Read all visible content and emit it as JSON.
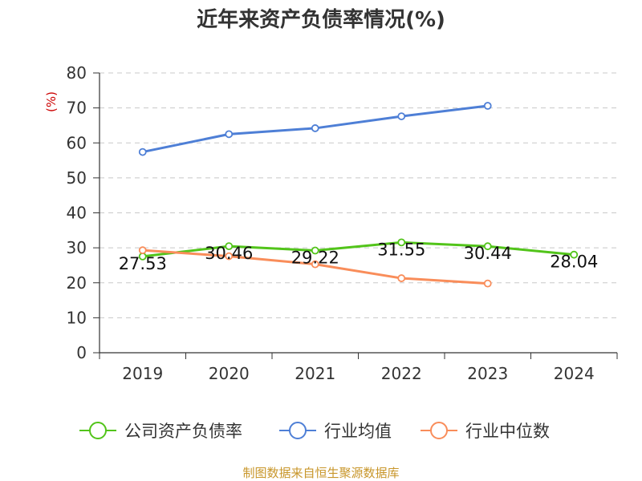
{
  "chart_data": {
    "type": "line",
    "title": "近年来资产负债率情况(%)",
    "ylabel": "(%)",
    "categories": [
      "2019",
      "2020",
      "2021",
      "2022",
      "2023",
      "2024"
    ],
    "ylim": [
      0,
      80
    ],
    "yticks": [
      0,
      10,
      20,
      30,
      40,
      50,
      60,
      70,
      80
    ],
    "grid": true,
    "legend_position": "bottom",
    "series": [
      {
        "name": "公司资产负债率",
        "color": "#52c41a",
        "values": [
          27.53,
          30.46,
          29.22,
          31.55,
          30.44,
          28.04
        ],
        "labels": [
          "27.53",
          "30.46",
          "29.22",
          "31.55",
          "30.44",
          "28.04"
        ]
      },
      {
        "name": "行业均值",
        "color": "#4e7fd6",
        "values": [
          57.4,
          62.5,
          64.2,
          67.6,
          70.6,
          null
        ]
      },
      {
        "name": "行业中位数",
        "color": "#f98d5a",
        "values": [
          29.3,
          27.6,
          25.3,
          21.3,
          19.8,
          null
        ]
      }
    ]
  },
  "source_text": "制图数据来自恒生聚源数据库"
}
